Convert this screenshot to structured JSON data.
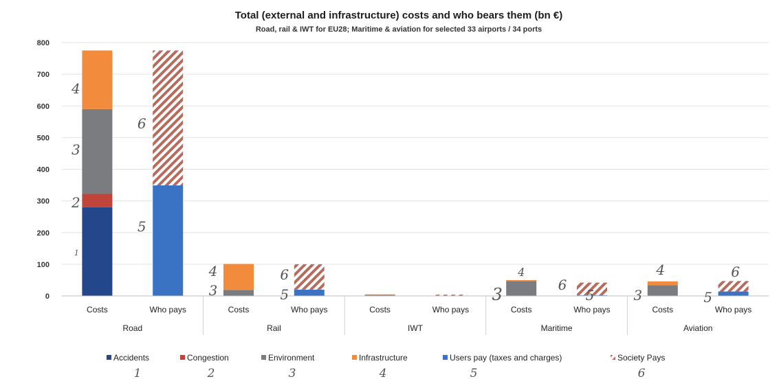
{
  "chart_data": {
    "type": "bar",
    "title": "Total (external and infrastructure) costs and who bears them (bn €)",
    "subtitle": "Road, rail & IWT for EU28; Maritime & aviation for selected 33 airports / 34 ports",
    "ylim": [
      0,
      800
    ],
    "yticks": [
      "0",
      "100",
      "200",
      "300",
      "400",
      "500",
      "600",
      "700",
      "800"
    ],
    "grid": true,
    "legend_position": "bottom",
    "groups": [
      {
        "name": "Road",
        "bars": [
          {
            "label": "Costs",
            "accidents": 280,
            "congestion": 42,
            "environment": 268,
            "infrastructure": 185
          },
          {
            "label": "Who pays",
            "users_pay": 349,
            "society_pays": 426
          }
        ]
      },
      {
        "name": "Rail",
        "bars": [
          {
            "label": "Costs",
            "accidents": 1,
            "congestion": 0,
            "environment": 18,
            "infrastructure": 82
          },
          {
            "label": "Who pays",
            "users_pay": 20,
            "society_pays": 80
          }
        ]
      },
      {
        "name": "IWT",
        "bars": [
          {
            "label": "Costs",
            "accidents": 0,
            "congestion": 0,
            "environment": 3,
            "infrastructure": 2
          },
          {
            "label": "Who pays",
            "users_pay": 0,
            "society_pays": 4
          }
        ]
      },
      {
        "name": "Maritime",
        "bars": [
          {
            "label": "Costs",
            "accidents": 0,
            "congestion": 0,
            "environment": 47,
            "infrastructure": 3
          },
          {
            "label": "Who pays",
            "users_pay": 2,
            "society_pays": 40
          }
        ]
      },
      {
        "name": "Aviation",
        "bars": [
          {
            "label": "Costs",
            "accidents": 1,
            "congestion": 0,
            "environment": 33,
            "infrastructure": 12
          },
          {
            "label": "Who pays",
            "users_pay": 14,
            "society_pays": 33
          }
        ]
      }
    ],
    "series": [
      {
        "key": "accidents",
        "name": "Accidents",
        "color": "#24468a"
      },
      {
        "key": "congestion",
        "name": "Congestion",
        "color": "#c0443a"
      },
      {
        "key": "environment",
        "name": "Environment",
        "color": "#7b7c80"
      },
      {
        "key": "infrastructure",
        "name": "Infrastructure",
        "color": "#f28c3c"
      },
      {
        "key": "users_pay",
        "name": "Users pay (taxes and charges)",
        "color": "#3a73c3"
      },
      {
        "key": "society_pays",
        "name": "Society Pays",
        "color": "#b86a5c",
        "pattern": "hatched"
      }
    ],
    "annotations": {
      "legend_numbers": [
        "1",
        "2",
        "3",
        "4",
        "5",
        "6"
      ],
      "road_costs": [
        "1",
        "2",
        "3",
        "4"
      ],
      "road_whopays": [
        "5",
        "6"
      ],
      "rail_costs": [
        "3",
        "4"
      ],
      "rail_whopays": [
        "5",
        "6"
      ],
      "maritime_costs": [
        "3",
        "4"
      ],
      "maritime_whopays": [
        "5",
        "6"
      ],
      "aviation_costs": [
        "3",
        "4"
      ],
      "aviation_whopays": [
        "5",
        "6"
      ]
    }
  }
}
